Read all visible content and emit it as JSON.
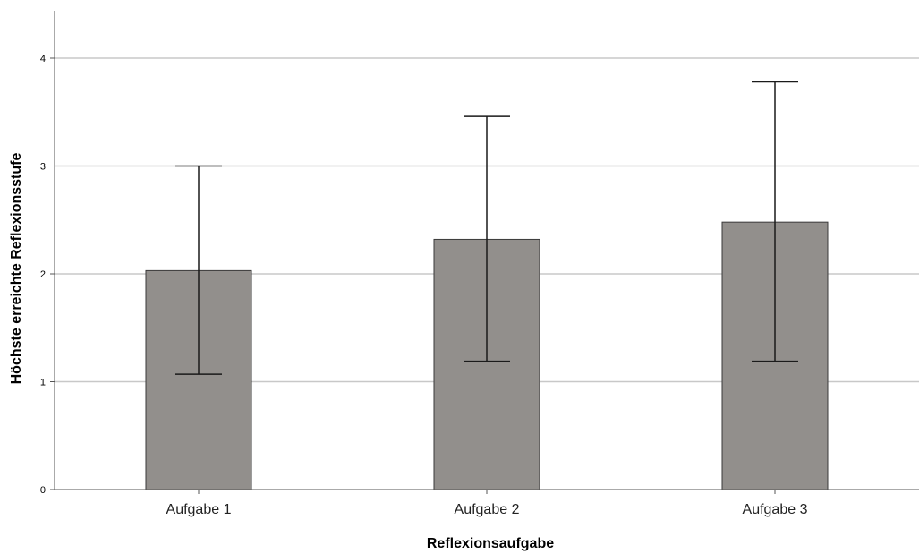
{
  "chart_data": {
    "type": "bar",
    "title": "",
    "xlabel": "Reflexionsaufgabe",
    "ylabel": "Höchste erreichte Reflexionsstufe",
    "ylim": [
      0,
      4.4
    ],
    "yticks": [
      0,
      1,
      2,
      3,
      4
    ],
    "ytick_labels": [
      "0",
      "1",
      "2",
      "3",
      "4"
    ],
    "categories": [
      "Aufgabe 1",
      "Aufgabe 2",
      "Aufgabe 3"
    ],
    "values": [
      2.03,
      2.32,
      2.48
    ],
    "error_low": [
      1.07,
      1.19,
      1.19
    ],
    "error_high": [
      3.0,
      3.46,
      3.78
    ],
    "grid": "horizontal",
    "bar_color": "#928f8c",
    "bar_edge_color": "#3a3a3a",
    "grid_color": "#c8c8c8",
    "errorbar_color": "#1a1a1a"
  }
}
